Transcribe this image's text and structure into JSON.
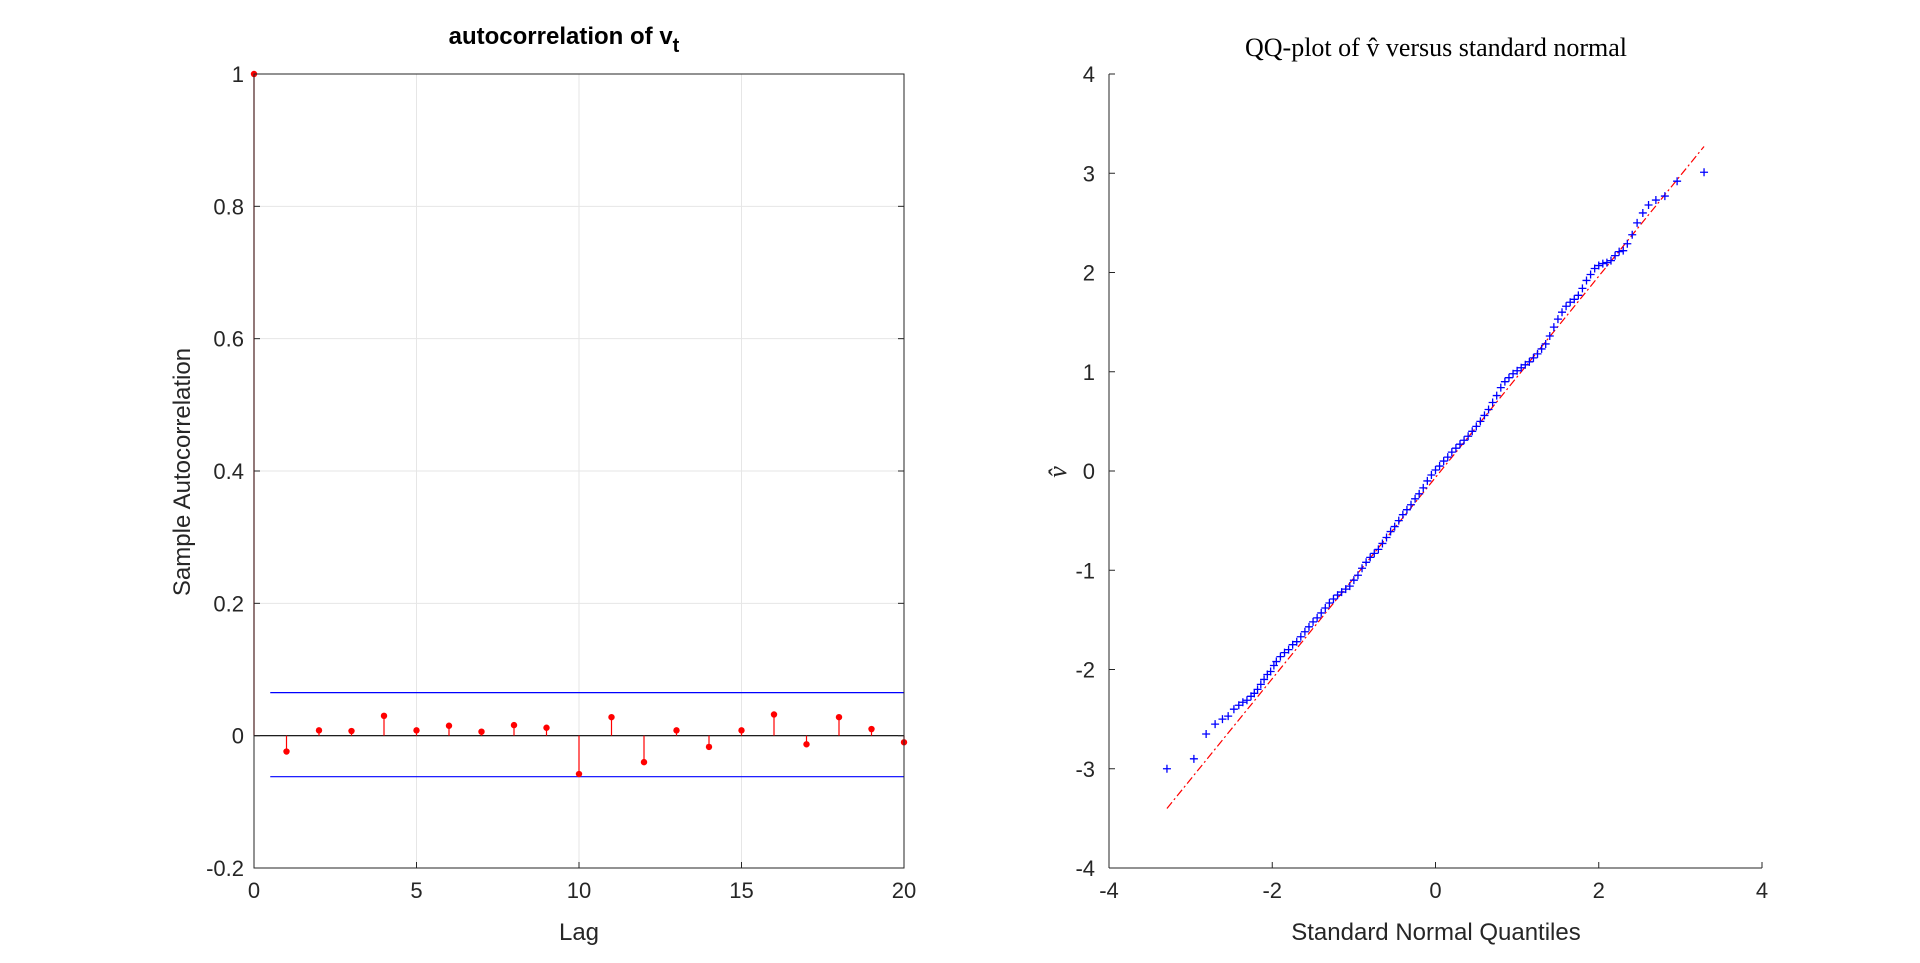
{
  "figure": {
    "background": "#ffffff"
  },
  "chart_data": [
    {
      "type": "stem",
      "title": "autocorrelation of v",
      "title_subscript": "t",
      "xlabel": "Lag",
      "ylabel": "Sample Autocorrelation",
      "xlim": [
        0,
        20
      ],
      "ylim": [
        -0.2,
        1
      ],
      "xticks": [
        0,
        5,
        10,
        15,
        20
      ],
      "xtick_labels": [
        "0",
        "5",
        "10",
        "15",
        "20"
      ],
      "yticks": [
        -0.2,
        0,
        0.2,
        0.4,
        0.6,
        0.8,
        1
      ],
      "ytick_labels": [
        "-0.2",
        "0",
        "0.2",
        "0.4",
        "0.6",
        "0.8",
        "1"
      ],
      "grid": true,
      "lags": [
        0,
        1,
        2,
        3,
        4,
        5,
        6,
        7,
        8,
        9,
        10,
        11,
        12,
        13,
        14,
        15,
        16,
        17,
        18,
        19,
        20
      ],
      "values": [
        1.0,
        -0.024,
        0.008,
        0.007,
        0.03,
        0.008,
        0.015,
        0.006,
        0.016,
        0.012,
        -0.058,
        0.028,
        -0.04,
        0.008,
        -0.017,
        0.008,
        0.032,
        -0.013,
        0.028,
        0.01,
        -0.01
      ],
      "bounds": [
        0.065,
        -0.062
      ],
      "colors": {
        "stem": "#ff0000",
        "bounds": "#0000ff",
        "zero": "#000000"
      }
    },
    {
      "type": "qq",
      "title": "QQ-plot of v̂ versus standard normal",
      "xlabel": "Standard Normal Quantiles",
      "ylabel": "v̂",
      "xlim": [
        -4,
        4
      ],
      "ylim": [
        -4,
        4
      ],
      "xticks": [
        -4,
        -2,
        0,
        2,
        4
      ],
      "xtick_labels": [
        "-4",
        "-2",
        "0",
        "2",
        "4"
      ],
      "yticks": [
        -4,
        -3,
        -2,
        -1,
        0,
        1,
        2,
        3,
        4
      ],
      "ytick_labels": [
        "-4",
        "-3",
        "-2",
        "-1",
        "0",
        "1",
        "2",
        "3",
        "4"
      ],
      "grid": false,
      "reference_line": {
        "x": [
          -3.29,
          3.29
        ],
        "y": [
          -3.4,
          3.27
        ]
      },
      "points": [
        [
          -3.29,
          -3.0
        ],
        [
          -2.96,
          -2.9
        ],
        [
          -2.81,
          -2.65
        ],
        [
          -2.7,
          -2.55
        ],
        [
          -2.61,
          -2.5
        ],
        [
          -2.54,
          -2.47
        ],
        [
          -2.47,
          -2.4
        ],
        [
          -2.41,
          -2.36
        ],
        [
          -2.36,
          -2.33
        ],
        [
          -2.31,
          -2.31
        ],
        [
          -2.26,
          -2.27
        ],
        [
          -2.22,
          -2.24
        ],
        [
          -2.18,
          -2.2
        ],
        [
          -2.14,
          -2.15
        ],
        [
          -2.1,
          -2.1
        ],
        [
          -2.06,
          -2.05
        ],
        [
          -2.02,
          -2.02
        ],
        [
          -1.98,
          -1.96
        ],
        [
          -1.95,
          -1.92
        ],
        [
          -1.9,
          -1.87
        ],
        [
          -1.85,
          -1.83
        ],
        [
          -1.8,
          -1.8
        ],
        [
          -1.75,
          -1.75
        ],
        [
          -1.7,
          -1.72
        ],
        [
          -1.65,
          -1.67
        ],
        [
          -1.6,
          -1.62
        ],
        [
          -1.55,
          -1.57
        ],
        [
          -1.5,
          -1.52
        ],
        [
          -1.45,
          -1.48
        ],
        [
          -1.4,
          -1.43
        ],
        [
          -1.35,
          -1.38
        ],
        [
          -1.3,
          -1.33
        ],
        [
          -1.25,
          -1.29
        ],
        [
          -1.2,
          -1.25
        ],
        [
          -1.15,
          -1.22
        ],
        [
          -1.1,
          -1.19
        ],
        [
          -1.05,
          -1.16
        ],
        [
          -1.0,
          -1.1
        ],
        [
          -0.95,
          -1.05
        ],
        [
          -0.9,
          -0.98
        ],
        [
          -0.85,
          -0.92
        ],
        [
          -0.8,
          -0.87
        ],
        [
          -0.75,
          -0.83
        ],
        [
          -0.7,
          -0.79
        ],
        [
          -0.65,
          -0.73
        ],
        [
          -0.6,
          -0.67
        ],
        [
          -0.55,
          -0.61
        ],
        [
          -0.5,
          -0.56
        ],
        [
          -0.45,
          -0.5
        ],
        [
          -0.4,
          -0.44
        ],
        [
          -0.35,
          -0.39
        ],
        [
          -0.3,
          -0.34
        ],
        [
          -0.25,
          -0.28
        ],
        [
          -0.2,
          -0.23
        ],
        [
          -0.15,
          -0.17
        ],
        [
          -0.1,
          -0.1
        ],
        [
          -0.05,
          -0.04
        ],
        [
          0.0,
          0.01
        ],
        [
          0.05,
          0.05
        ],
        [
          0.1,
          0.1
        ],
        [
          0.15,
          0.14
        ],
        [
          0.2,
          0.19
        ],
        [
          0.25,
          0.23
        ],
        [
          0.3,
          0.27
        ],
        [
          0.35,
          0.31
        ],
        [
          0.4,
          0.35
        ],
        [
          0.45,
          0.4
        ],
        [
          0.5,
          0.45
        ],
        [
          0.55,
          0.5
        ],
        [
          0.6,
          0.56
        ],
        [
          0.65,
          0.62
        ],
        [
          0.7,
          0.69
        ],
        [
          0.75,
          0.76
        ],
        [
          0.8,
          0.84
        ],
        [
          0.85,
          0.9
        ],
        [
          0.9,
          0.94
        ],
        [
          0.95,
          0.98
        ],
        [
          1.0,
          1.01
        ],
        [
          1.05,
          1.04
        ],
        [
          1.1,
          1.07
        ],
        [
          1.15,
          1.1
        ],
        [
          1.2,
          1.14
        ],
        [
          1.25,
          1.18
        ],
        [
          1.3,
          1.23
        ],
        [
          1.35,
          1.28
        ],
        [
          1.4,
          1.36
        ],
        [
          1.45,
          1.45
        ],
        [
          1.5,
          1.53
        ],
        [
          1.55,
          1.6
        ],
        [
          1.6,
          1.66
        ],
        [
          1.65,
          1.7
        ],
        [
          1.7,
          1.73
        ],
        [
          1.75,
          1.77
        ],
        [
          1.8,
          1.84
        ],
        [
          1.85,
          1.92
        ],
        [
          1.9,
          1.98
        ],
        [
          1.95,
          2.04
        ],
        [
          2.0,
          2.07
        ],
        [
          2.05,
          2.09
        ],
        [
          2.1,
          2.1
        ],
        [
          2.15,
          2.12
        ],
        [
          2.2,
          2.17
        ],
        [
          2.25,
          2.21
        ],
        [
          2.3,
          2.22
        ],
        [
          2.35,
          2.29
        ],
        [
          2.41,
          2.38
        ],
        [
          2.47,
          2.5
        ],
        [
          2.54,
          2.6
        ],
        [
          2.61,
          2.68
        ],
        [
          2.7,
          2.73
        ],
        [
          2.81,
          2.77
        ],
        [
          2.96,
          2.92
        ],
        [
          3.29,
          3.01
        ]
      ],
      "colors": {
        "points": "#0000ff",
        "reference": "#ff0000"
      }
    }
  ]
}
